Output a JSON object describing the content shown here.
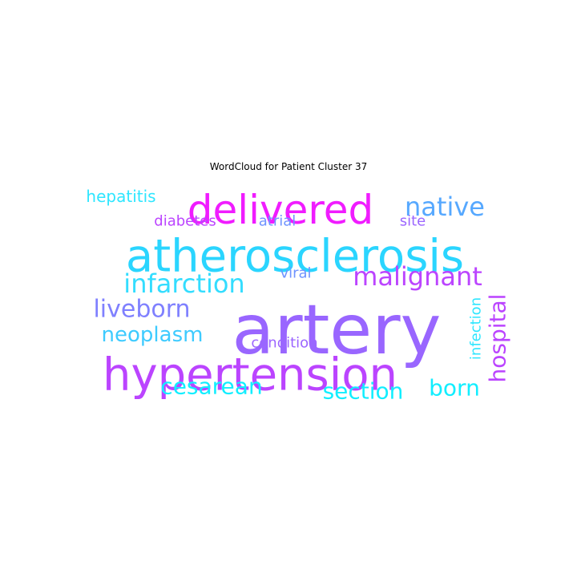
{
  "title": "WordCloud for Patient Cluster 37",
  "words": [
    {
      "text": "artery",
      "color": "#9966ff"
    },
    {
      "text": "atherosclerosis",
      "color": "#2ad5ff"
    },
    {
      "text": "delivered",
      "color": "#f01cff"
    },
    {
      "text": "hypertension",
      "color": "#bb44ff"
    },
    {
      "text": "native",
      "color": "#56a8ff"
    },
    {
      "text": "malignant",
      "color": "#bb44ff"
    },
    {
      "text": "infarction",
      "color": "#33ddff"
    },
    {
      "text": "liveborn",
      "color": "#7f80ff"
    },
    {
      "text": "neoplasm",
      "color": "#3ecbff"
    },
    {
      "text": "hospital",
      "color": "#bb44ff"
    },
    {
      "text": "section",
      "color": "#11eeff"
    },
    {
      "text": "born",
      "color": "#11eeff"
    },
    {
      "text": "cesarean",
      "color": "#11eeff"
    },
    {
      "text": "hepatitis",
      "color": "#2ee6ff"
    },
    {
      "text": "diabetes",
      "color": "#bb44ff"
    },
    {
      "text": "atrial",
      "color": "#6f93ff"
    },
    {
      "text": "site",
      "color": "#9c66ff"
    },
    {
      "text": "viral",
      "color": "#6f93ff"
    },
    {
      "text": "condition",
      "color": "#9c66ff"
    },
    {
      "text": "infection",
      "color": "#2ee6ff"
    }
  ]
}
